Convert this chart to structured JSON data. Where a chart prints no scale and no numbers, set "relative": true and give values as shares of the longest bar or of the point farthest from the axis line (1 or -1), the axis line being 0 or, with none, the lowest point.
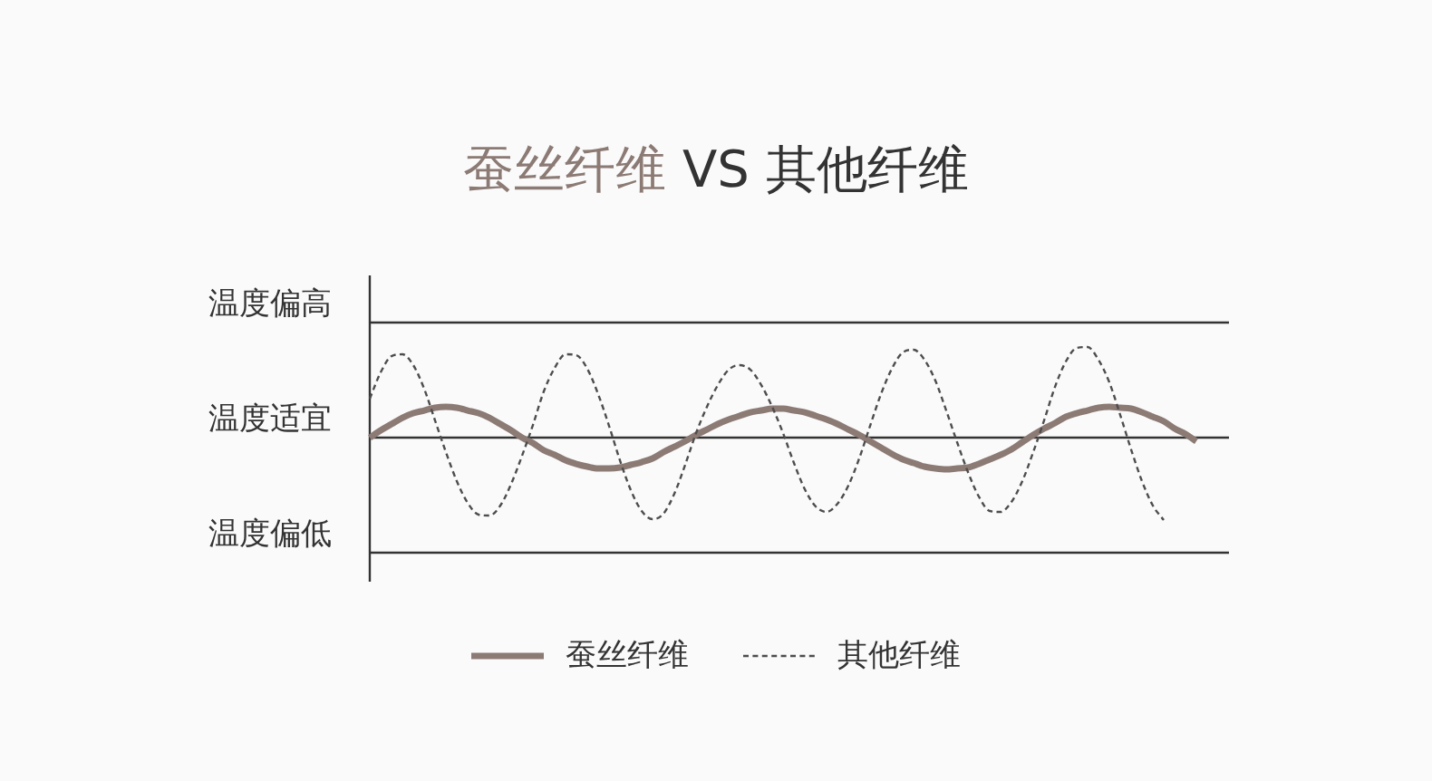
{
  "chart_data": {
    "type": "line",
    "title": "蚕丝纤维 VS 其他纤维",
    "relative": true,
    "legend": "bottom",
    "categories": [
      null,
      null,
      null,
      null,
      null,
      null,
      null,
      null,
      null,
      null,
      null,
      null,
      null,
      null,
      null,
      null,
      null,
      null,
      null,
      null,
      null,
      null,
      null,
      null,
      null,
      null,
      null,
      null,
      null,
      null,
      null,
      null,
      null,
      null,
      null,
      null,
      null,
      null,
      null,
      null,
      null,
      null,
      null,
      null,
      null,
      null,
      null,
      null,
      null,
      null,
      null,
      null,
      null,
      null,
      null,
      null,
      null,
      null,
      null,
      null,
      null,
      null,
      null,
      null,
      null,
      null,
      null,
      null,
      null,
      null,
      null,
      null,
      null,
      null,
      null,
      null,
      null
    ],
    "ref_lines": [
      {
        "axis": "y",
        "value": 1.27,
        "label": "温度偏高",
        "color": "#333333"
      },
      {
        "axis": "y",
        "value": 0,
        "label": "温度适宜",
        "color": "#333333"
      },
      {
        "axis": "y",
        "value": -1.27,
        "label": "温度偏低",
        "color": "#333333"
      }
    ],
    "series": [
      {
        "name": "蚕丝纤维",
        "color": "#8c7a74",
        "line_style": "solid",
        "values": [
          0,
          0.08,
          0.15,
          0.22,
          0.27,
          0.3,
          0.33,
          0.34,
          0.33,
          0.3,
          0.27,
          0.22,
          0.15,
          0.08,
          0,
          -0.06,
          -0.14,
          -0.19,
          -0.25,
          -0.29,
          -0.32,
          -0.34,
          -0.34,
          -0.33,
          -0.3,
          -0.27,
          -0.23,
          -0.16,
          -0.1,
          -0.04,
          0.03,
          0.09,
          0.15,
          0.2,
          0.24,
          0.28,
          0.3,
          0.32,
          0.32,
          0.3,
          0.28,
          0.24,
          0.2,
          0.15,
          0.09,
          0.03,
          -0.04,
          -0.11,
          -0.18,
          -0.24,
          -0.28,
          -0.32,
          -0.34,
          -0.35,
          -0.34,
          -0.33,
          -0.29,
          -0.24,
          -0.19,
          -0.13,
          -0.05,
          0.03,
          0.1,
          0.16,
          0.23,
          0.27,
          0.3,
          0.33,
          0.34,
          0.33,
          0.32,
          0.28,
          0.23,
          0.18,
          0.1,
          0.04,
          -0.04
        ]
      },
      {
        "name": "其他纤维",
        "color": "#4d4d4d",
        "line_style": "dashed",
        "values": [
          0.43,
          0.72,
          0.9,
          0.92,
          0.8,
          0.54,
          0.19,
          -0.16,
          -0.48,
          -0.72,
          -0.85,
          -0.86,
          -0.75,
          -0.51,
          -0.2,
          0.14,
          0.51,
          0.77,
          0.92,
          0.91,
          0.76,
          0.48,
          0.13,
          -0.25,
          -0.58,
          -0.81,
          -0.9,
          -0.84,
          -0.62,
          -0.3,
          0.05,
          0.34,
          0.58,
          0.75,
          0.8,
          0.75,
          0.58,
          0.34,
          0.05,
          -0.28,
          -0.57,
          -0.76,
          -0.82,
          -0.73,
          -0.53,
          -0.23,
          0.13,
          0.48,
          0.76,
          0.94,
          0.97,
          0.86,
          0.63,
          0.3,
          -0.05,
          -0.38,
          -0.65,
          -0.81,
          -0.82,
          -0.71,
          -0.48,
          -0.16,
          0.19,
          0.56,
          0.84,
          0.99,
          1,
          0.86,
          0.61,
          0.25,
          -0.13,
          -0.48,
          -0.75,
          -0.91,
          null,
          null,
          null
        ]
      }
    ]
  }
}
